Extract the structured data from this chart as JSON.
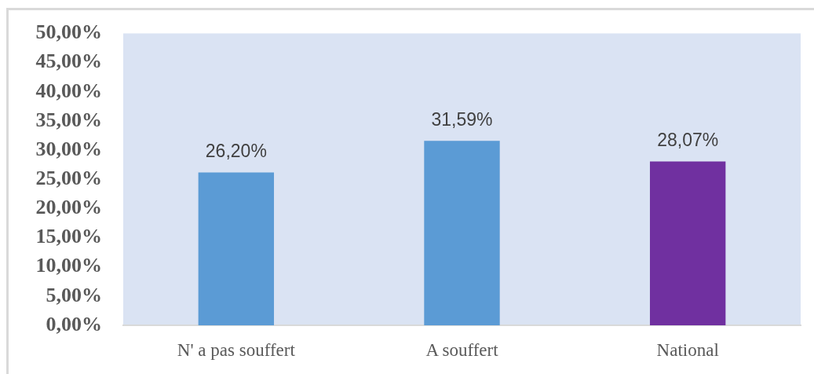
{
  "chart_data": {
    "type": "bar",
    "categories": [
      "N' a pas souffert",
      "A souffert",
      "National"
    ],
    "values": [
      26.2,
      31.59,
      28.07
    ],
    "colors": [
      "#5b9bd5",
      "#5b9bd5",
      "#7030a0"
    ],
    "value_labels": [
      "26,20%",
      "31,59%",
      "28,07%"
    ],
    "ylim": [
      0,
      50
    ],
    "yticks": [
      {
        "value": 0,
        "label": "0,00%"
      },
      {
        "value": 5,
        "label": "5,00%"
      },
      {
        "value": 10,
        "label": "10,00%"
      },
      {
        "value": 15,
        "label": "15,00%"
      },
      {
        "value": 20,
        "label": "20,00%"
      },
      {
        "value": 25,
        "label": "25,00%"
      },
      {
        "value": 30,
        "label": "30,00%"
      },
      {
        "value": 35,
        "label": "35,00%"
      },
      {
        "value": 40,
        "label": "40,00%"
      },
      {
        "value": 45,
        "label": "45,00%"
      },
      {
        "value": 50,
        "label": "50,00%"
      }
    ]
  }
}
